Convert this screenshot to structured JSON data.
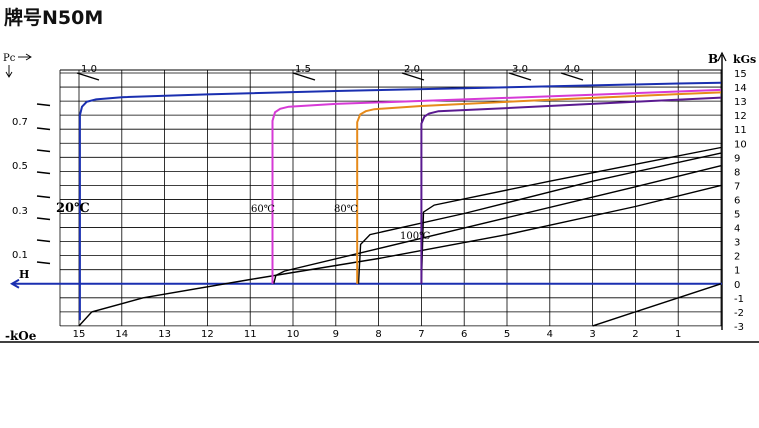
{
  "page": {
    "title": "牌号N50M"
  },
  "chart_data": {
    "type": "line",
    "title": "牌号N50M",
    "xlabel": "-kOe",
    "x_axis_arrow_label": "H",
    "ylabel": "kGs",
    "y_axis_arrow_label": "B",
    "pc_label": "Pc",
    "x_ticks": [
      "15",
      "14",
      "13",
      "12",
      "11",
      "10",
      "9",
      "8",
      "7",
      "6",
      "5",
      "4",
      "3",
      "2",
      "1"
    ],
    "y_ticks": [
      "15",
      "14",
      "13",
      "12",
      "11",
      "10",
      "9",
      "8",
      "7",
      "6",
      "5",
      "4",
      "3",
      "2",
      "1",
      "0",
      "-1",
      "-2",
      "-3"
    ],
    "pc_left_labels": [
      "0.7",
      "0.5",
      "0.3",
      "0.1"
    ],
    "pc_top_labels": [
      "1.0",
      "1.5",
      "2.0",
      "3.0",
      "4.0"
    ],
    "xlim": [
      15.5,
      -0.2
    ],
    "ylim": [
      -3,
      15
    ],
    "grid": true,
    "series": [
      {
        "name": "20℃",
        "color": "#1a2fb0",
        "demag": [
          [
            14.98,
            -2.6
          ],
          [
            14.98,
            12.0
          ],
          [
            14.93,
            12.6
          ],
          [
            14.82,
            12.95
          ],
          [
            14.6,
            13.12
          ],
          [
            14.0,
            13.28
          ],
          [
            12.0,
            13.48
          ],
          [
            9.0,
            13.72
          ],
          [
            6.0,
            13.92
          ],
          [
            3.0,
            14.12
          ],
          [
            1.0,
            14.25
          ],
          [
            0.0,
            14.3
          ]
        ],
        "recoil": [
          [
            15.0,
            -3.0
          ],
          [
            14.7,
            -2.0
          ],
          [
            13.5,
            -1.0
          ],
          [
            11.0,
            0.3
          ],
          [
            8.0,
            1.8
          ],
          [
            5.0,
            3.5
          ],
          [
            2.0,
            5.5
          ],
          [
            0.0,
            7.0
          ]
        ]
      },
      {
        "name": "60℃",
        "color": "#d63ad6",
        "demag": [
          [
            10.48,
            0.0
          ],
          [
            10.48,
            11.6
          ],
          [
            10.42,
            12.2
          ],
          [
            10.3,
            12.45
          ],
          [
            10.1,
            12.6
          ],
          [
            9.0,
            12.8
          ],
          [
            6.0,
            13.12
          ],
          [
            3.0,
            13.45
          ],
          [
            0.0,
            13.8
          ]
        ],
        "recoil": [
          [
            10.45,
            0.0
          ],
          [
            10.4,
            0.6
          ],
          [
            10.2,
            0.9
          ],
          [
            8.0,
            2.5
          ],
          [
            5.0,
            4.7
          ],
          [
            2.0,
            6.9
          ],
          [
            0.0,
            8.4
          ]
        ]
      },
      {
        "name": "80℃",
        "color": "#e68a1a",
        "demag": [
          [
            8.5,
            0.0
          ],
          [
            8.5,
            11.5
          ],
          [
            8.43,
            12.05
          ],
          [
            8.3,
            12.28
          ],
          [
            8.1,
            12.42
          ],
          [
            7.0,
            12.65
          ],
          [
            4.0,
            13.1
          ],
          [
            1.0,
            13.5
          ],
          [
            0.0,
            13.62
          ]
        ],
        "recoil": [
          [
            8.47,
            0.0
          ],
          [
            8.42,
            2.8
          ],
          [
            8.2,
            3.5
          ],
          [
            6.0,
            5.0
          ],
          [
            3.0,
            7.3
          ],
          [
            0.0,
            9.3
          ]
        ]
      },
      {
        "name": "100℃",
        "color": "#5a1a90",
        "demag": [
          [
            7.0,
            0.0
          ],
          [
            7.0,
            11.4
          ],
          [
            6.93,
            11.9
          ],
          [
            6.82,
            12.12
          ],
          [
            6.6,
            12.28
          ],
          [
            5.0,
            12.5
          ],
          [
            2.0,
            12.95
          ],
          [
            0.0,
            13.25
          ]
        ],
        "recoil": [
          [
            7.0,
            0.0
          ],
          [
            6.95,
            5.1
          ],
          [
            6.7,
            5.6
          ],
          [
            4.0,
            7.3
          ],
          [
            2.0,
            8.5
          ],
          [
            0.0,
            9.7
          ]
        ]
      }
    ],
    "extra_lines": [
      {
        "name": "3.0 line",
        "color": "#000000",
        "points": [
          [
            3.0,
            -3.0
          ],
          [
            0.0,
            0.0
          ]
        ]
      }
    ],
    "annotations": [
      "20℃",
      "60℃",
      "80℃",
      "100℃"
    ]
  }
}
